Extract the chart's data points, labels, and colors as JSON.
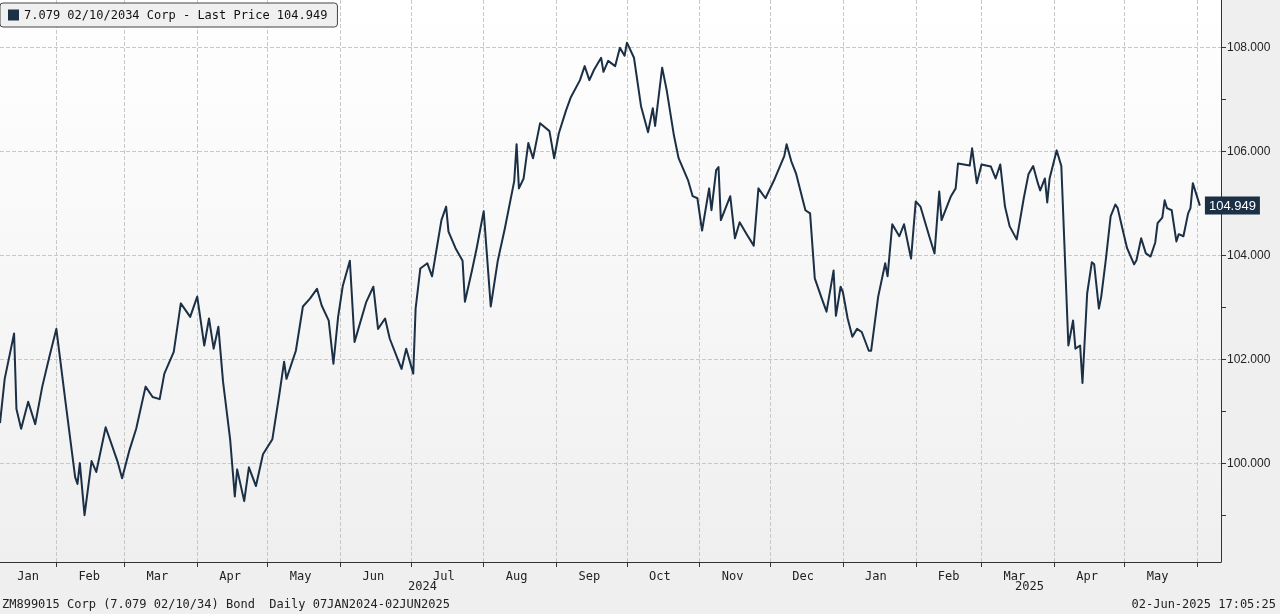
{
  "chart_data": {
    "type": "line",
    "x": [
      "2024-01-08",
      "2024-01-10",
      "2024-01-14",
      "2024-01-15",
      "2024-01-17",
      "2024-01-20",
      "2024-01-23",
      "2024-01-26",
      "2024-01-29",
      "2024-02-01",
      "2024-02-05",
      "2024-02-09",
      "2024-02-10",
      "2024-02-11",
      "2024-02-13",
      "2024-02-16",
      "2024-02-18",
      "2024-02-22",
      "2024-02-27",
      "2024-02-29",
      "2024-03-03",
      "2024-03-06",
      "2024-03-10",
      "2024-03-13",
      "2024-03-16",
      "2024-03-18",
      "2024-03-22",
      "2024-03-25",
      "2024-03-29",
      "2024-04-01",
      "2024-04-04",
      "2024-04-06",
      "2024-04-08",
      "2024-04-10",
      "2024-04-12",
      "2024-04-15",
      "2024-04-17",
      "2024-04-18",
      "2024-04-21",
      "2024-04-23",
      "2024-04-26",
      "2024-04-29",
      "2024-05-03",
      "2024-05-06",
      "2024-05-08",
      "2024-05-09",
      "2024-05-13",
      "2024-05-16",
      "2024-05-19",
      "2024-05-22",
      "2024-05-24",
      "2024-05-27",
      "2024-05-29",
      "2024-05-31",
      "2024-06-02",
      "2024-06-05",
      "2024-06-07",
      "2024-06-12",
      "2024-06-15",
      "2024-06-17",
      "2024-06-20",
      "2024-06-22",
      "2024-06-27",
      "2024-06-29",
      "2024-07-02",
      "2024-07-03",
      "2024-07-05",
      "2024-07-08",
      "2024-07-10",
      "2024-07-12",
      "2024-07-14",
      "2024-07-16",
      "2024-07-17",
      "2024-07-20",
      "2024-07-23",
      "2024-07-24",
      "2024-07-27",
      "2024-07-29",
      "2024-08-01",
      "2024-08-04",
      "2024-08-07",
      "2024-08-10",
      "2024-08-14",
      "2024-08-15",
      "2024-08-16",
      "2024-08-18",
      "2024-08-20",
      "2024-08-22",
      "2024-08-25",
      "2024-08-29",
      "2024-08-31",
      "2024-09-02",
      "2024-09-05",
      "2024-09-07",
      "2024-09-11",
      "2024-09-13",
      "2024-09-15",
      "2024-09-17",
      "2024-09-20",
      "2024-09-21",
      "2024-09-23",
      "2024-09-26",
      "2024-09-28",
      "2024-09-30",
      "2024-10-01",
      "2024-10-04",
      "2024-10-07",
      "2024-10-10",
      "2024-10-12",
      "2024-10-13",
      "2024-10-16",
      "2024-10-18",
      "2024-10-21",
      "2024-10-23",
      "2024-10-27",
      "2024-10-29",
      "2024-10-31",
      "2024-11-02",
      "2024-11-05",
      "2024-11-06",
      "2024-11-08",
      "2024-11-09",
      "2024-11-10",
      "2024-11-14",
      "2024-11-16",
      "2024-11-18",
      "2024-11-21",
      "2024-11-24",
      "2024-11-26",
      "2024-11-29",
      "2024-12-03",
      "2024-12-07",
      "2024-12-08",
      "2024-12-10",
      "2024-12-12",
      "2024-12-16",
      "2024-12-18",
      "2024-12-20",
      "2024-12-23",
      "2024-12-25",
      "2024-12-28",
      "2024-12-29",
      "2024-12-31",
      "2025-01-01",
      "2025-01-03",
      "2025-01-05",
      "2025-01-07",
      "2025-01-09",
      "2025-01-12",
      "2025-01-13",
      "2025-01-16",
      "2025-01-19",
      "2025-01-20",
      "2025-01-22",
      "2025-01-25",
      "2025-01-27",
      "2025-01-30",
      "2025-02-01",
      "2025-02-03",
      "2025-02-07",
      "2025-02-09",
      "2025-02-11",
      "2025-02-12",
      "2025-02-16",
      "2025-02-18",
      "2025-02-19",
      "2025-02-24",
      "2025-02-25",
      "2025-02-27",
      "2025-03-01",
      "2025-03-05",
      "2025-03-07",
      "2025-03-09",
      "2025-03-11",
      "2025-03-13",
      "2025-03-16",
      "2025-03-19",
      "2025-03-21",
      "2025-03-23",
      "2025-03-25",
      "2025-03-26",
      "2025-03-28",
      "2025-03-29",
      "2025-03-30",
      "2025-04-02",
      "2025-04-04",
      "2025-04-07",
      "2025-04-09",
      "2025-04-10",
      "2025-04-12",
      "2025-04-13",
      "2025-04-15",
      "2025-04-17",
      "2025-04-18",
      "2025-04-20",
      "2025-04-21",
      "2025-04-23",
      "2025-04-25",
      "2025-04-27",
      "2025-04-28",
      "2025-04-30",
      "2025-05-02",
      "2025-05-05",
      "2025-05-06",
      "2025-05-08",
      "2025-05-10",
      "2025-05-12",
      "2025-05-14",
      "2025-05-15",
      "2025-05-17",
      "2025-05-18",
      "2025-05-19",
      "2025-05-21",
      "2025-05-23",
      "2025-05-24",
      "2025-05-26",
      "2025-05-28",
      "2025-05-29",
      "2025-05-30",
      "2025-06-02"
    ],
    "series": [
      {
        "name": "7.079 02/10/2034 Corp - Last Price 104.949",
        "color": "#1b2f45",
        "values": [
          100.77,
          101.62,
          102.49,
          101.04,
          100.66,
          101.18,
          100.75,
          101.47,
          102.04,
          102.58,
          101.14,
          99.73,
          99.6,
          100.0,
          99.0,
          100.04,
          99.83,
          100.69,
          100.04,
          99.71,
          100.23,
          100.66,
          101.47,
          101.27,
          101.23,
          101.72,
          102.14,
          103.07,
          102.81,
          103.2,
          102.26,
          102.78,
          102.2,
          102.62,
          101.56,
          100.46,
          99.36,
          99.88,
          99.27,
          99.92,
          99.56,
          100.17,
          100.46,
          101.33,
          101.95,
          101.62,
          102.16,
          103.01,
          103.16,
          103.35,
          103.03,
          102.74,
          101.91,
          102.81,
          103.41,
          103.89,
          102.33,
          103.1,
          103.39,
          102.58,
          102.78,
          102.39,
          101.81,
          102.2,
          101.72,
          102.97,
          103.74,
          103.84,
          103.59,
          104.13,
          104.67,
          104.93,
          104.45,
          104.13,
          103.89,
          103.1,
          103.7,
          104.13,
          104.84,
          103.01,
          103.89,
          104.51,
          105.42,
          106.13,
          105.28,
          105.47,
          106.15,
          105.86,
          106.53,
          106.38,
          105.86,
          106.34,
          106.77,
          107.02,
          107.36,
          107.63,
          107.36,
          107.56,
          107.79,
          107.52,
          107.73,
          107.63,
          107.98,
          107.83,
          108.08,
          107.79,
          106.86,
          106.36,
          106.82,
          106.48,
          107.6,
          107.15,
          106.3,
          105.86,
          105.44,
          105.13,
          105.09,
          104.47,
          105.28,
          104.86,
          105.63,
          105.69,
          104.67,
          105.13,
          104.32,
          104.63,
          104.4,
          104.18,
          105.28,
          105.09,
          105.47,
          105.9,
          106.13,
          105.8,
          105.57,
          104.86,
          104.8,
          103.55,
          103.16,
          102.91,
          103.7,
          102.83,
          103.39,
          103.28,
          102.78,
          102.43,
          102.58,
          102.52,
          102.16,
          102.16,
          103.2,
          103.84,
          103.59,
          104.59,
          104.36,
          104.59,
          103.93,
          105.03,
          104.93,
          104.32,
          104.03,
          105.22,
          104.67,
          105.13,
          105.28,
          105.76,
          105.72,
          106.05,
          105.38,
          105.74,
          105.7,
          105.47,
          105.74,
          104.93,
          104.55,
          104.3,
          105.09,
          105.55,
          105.71,
          105.38,
          105.24,
          105.47,
          105.01,
          105.47,
          106.01,
          105.71,
          102.26,
          102.74,
          102.2,
          102.26,
          101.54,
          103.26,
          103.86,
          103.82,
          102.97,
          103.2,
          103.93,
          104.74,
          104.97,
          104.9,
          104.51,
          104.13,
          103.82,
          103.9,
          104.32,
          104.03,
          103.97,
          104.24,
          104.61,
          104.72,
          105.05,
          104.9,
          104.86,
          104.26,
          104.4,
          104.36,
          104.8,
          104.9,
          105.38,
          104.949
        ],
        "value_labels": [
          null,
          null,
          null,
          null,
          null,
          null,
          null,
          null,
          null,
          null,
          null,
          null,
          null,
          null,
          null,
          null,
          null,
          null,
          null,
          null,
          null,
          null,
          null,
          null,
          null,
          null,
          null,
          null,
          null,
          null,
          null,
          null,
          null,
          null,
          null,
          null,
          null,
          null,
          null,
          null,
          null,
          null,
          null,
          null,
          null,
          null,
          null,
          null,
          null,
          null,
          null,
          null,
          null,
          null,
          null,
          null,
          null,
          null,
          null,
          null,
          null,
          null,
          null,
          null,
          null,
          null,
          null,
          null,
          null,
          null,
          null,
          null,
          null,
          null,
          null,
          null,
          null,
          null,
          null,
          null,
          null,
          null,
          null,
          null,
          null,
          null,
          null,
          null,
          null,
          null,
          null,
          null,
          null,
          null,
          null,
          null,
          null,
          null,
          null,
          null,
          null,
          null,
          null,
          null,
          null,
          null,
          null,
          null,
          null,
          null,
          null,
          null,
          null,
          null,
          null,
          null,
          null,
          null,
          null,
          null,
          null,
          null,
          null,
          null,
          null,
          null,
          null,
          null,
          null,
          null,
          null,
          null,
          null,
          null,
          null,
          null,
          null,
          null,
          null,
          null,
          null,
          null,
          null,
          null,
          null,
          null,
          null,
          null,
          null,
          null,
          null,
          null,
          null,
          null,
          null,
          null,
          null,
          null,
          null,
          null,
          null,
          null,
          null,
          null,
          null,
          null,
          null,
          null,
          null,
          null,
          null,
          null,
          null,
          null,
          null,
          null,
          null,
          null,
          null,
          null,
          null,
          null,
          null,
          null,
          null,
          null,
          null,
          null,
          null,
          null,
          null,
          null,
          null,
          null,
          null,
          null,
          null,
          null,
          null,
          null,
          null,
          null,
          null,
          null,
          null,
          null,
          null,
          null,
          null,
          null,
          null,
          null,
          null,
          null,
          null,
          null,
          null,
          null,
          null,
          "104.949"
        ]
      }
    ],
    "xlim": [
      "2024-01-08",
      "2025-06-11"
    ],
    "xticks": [
      {
        "value": "2024-01-20",
        "label": "Jan"
      },
      {
        "value": "2024-02-01",
        "label": null
      },
      {
        "value": "2024-02-15",
        "label": "Feb"
      },
      {
        "value": "2024-03-01",
        "label": null
      },
      {
        "value": "2024-03-15",
        "label": "Mar"
      },
      {
        "value": "2024-04-01",
        "label": null
      },
      {
        "value": "2024-04-15",
        "label": "Apr"
      },
      {
        "value": "2024-05-01",
        "label": null
      },
      {
        "value": "2024-05-15",
        "label": "May"
      },
      {
        "value": "2024-06-01",
        "label": null
      },
      {
        "value": "2024-06-15",
        "label": "Jun"
      },
      {
        "value": "2024-07-01",
        "label": null
      },
      {
        "value": "2024-07-15",
        "label": "Jul"
      },
      {
        "value": "2024-08-01",
        "label": null
      },
      {
        "value": "2024-08-15",
        "label": "Aug"
      },
      {
        "value": "2024-09-01",
        "label": null
      },
      {
        "value": "2024-09-15",
        "label": "Sep"
      },
      {
        "value": "2024-10-01",
        "label": null
      },
      {
        "value": "2024-10-15",
        "label": "Oct"
      },
      {
        "value": "2024-11-01",
        "label": null
      },
      {
        "value": "2024-11-15",
        "label": "Nov"
      },
      {
        "value": "2024-12-01",
        "label": null
      },
      {
        "value": "2024-12-15",
        "label": "Dec"
      },
      {
        "value": "2025-01-01",
        "label": null
      },
      {
        "value": "2025-01-15",
        "label": "Jan"
      },
      {
        "value": "2025-02-01",
        "label": null
      },
      {
        "value": "2025-02-15",
        "label": "Feb"
      },
      {
        "value": "2025-03-01",
        "label": null
      },
      {
        "value": "2025-03-15",
        "label": "Mar"
      },
      {
        "value": "2025-04-01",
        "label": null
      },
      {
        "value": "2025-04-15",
        "label": "Apr"
      },
      {
        "value": "2025-05-01",
        "label": null
      },
      {
        "value": "2025-05-15",
        "label": "May"
      },
      {
        "value": "2025-06-01",
        "label": null
      }
    ],
    "ylim": [
      98.1,
      108.9
    ],
    "yticks": [
      {
        "value": 99,
        "label": null
      },
      {
        "value": 100,
        "label": "100.000"
      },
      {
        "value": 101,
        "label": null
      },
      {
        "value": 102,
        "label": "102.000"
      },
      {
        "value": 103,
        "label": null
      },
      {
        "value": 104,
        "label": "104.000"
      },
      {
        "value": 105,
        "label": null
      },
      {
        "value": 106,
        "label": "106.000"
      },
      {
        "value": 107,
        "label": null
      },
      {
        "value": 108,
        "label": "108.000"
      }
    ],
    "grid": true,
    "legend": "top left",
    "marker": "none",
    "line_style": "solid",
    "annotations": [
      "2024",
      "2025",
      "ZM899015 Corp (7.079 02/10/34) Bond  Daily 07JAN2024-02JUN2025",
      "02-Jun-2025 17:05:25"
    ]
  }
}
